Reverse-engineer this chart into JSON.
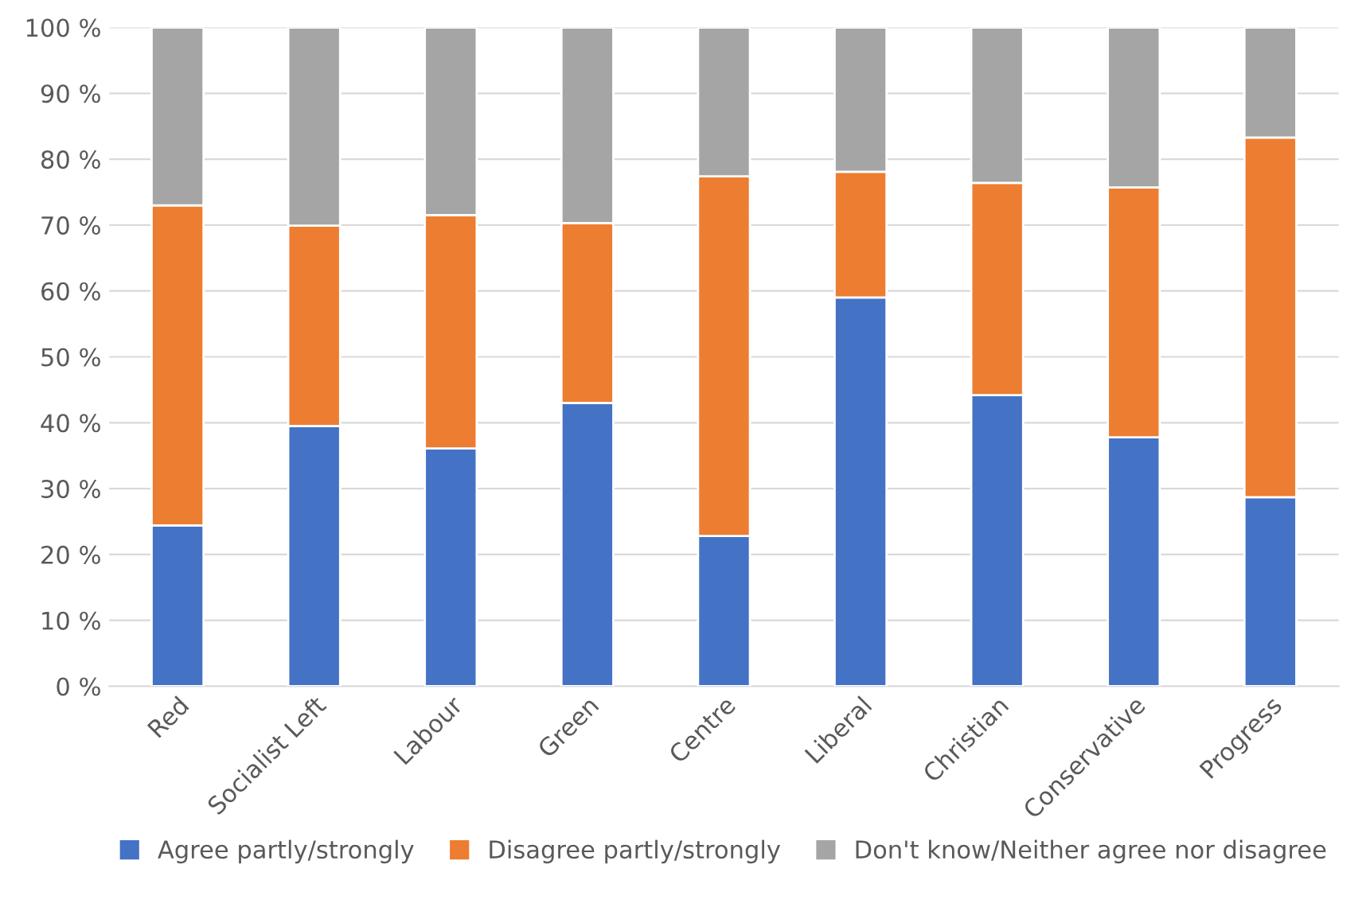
{
  "chart_data": {
    "type": "bar",
    "stacked": true,
    "categories": [
      "Red",
      "Socialist Left",
      "Labour",
      "Green",
      "Centre",
      "Liberal",
      "Christian",
      "Conservative",
      "Progress"
    ],
    "series": [
      {
        "name": "Agree partly/strongly",
        "color": "#4472c4",
        "values": [
          24.4,
          39.5,
          36.1,
          43.0,
          22.8,
          59.0,
          44.2,
          37.8,
          28.7
        ]
      },
      {
        "name": "Disagree partly/strongly",
        "color": "#ed7d31",
        "values": [
          48.6,
          30.4,
          35.4,
          27.3,
          54.6,
          19.1,
          32.2,
          37.9,
          54.6
        ]
      },
      {
        "name": "Don't know/Neither agree nor disagree",
        "color": "#a5a5a5",
        "values": [
          27.0,
          30.1,
          28.5,
          29.7,
          22.6,
          21.9,
          23.6,
          24.3,
          16.7
        ]
      }
    ],
    "ylim": [
      0,
      100
    ],
    "yticks": [
      {
        "value": 0,
        "label": "0 %"
      },
      {
        "value": 10,
        "label": "10 %"
      },
      {
        "value": 20,
        "label": "20 %"
      },
      {
        "value": 30,
        "label": "30 %"
      },
      {
        "value": 40,
        "label": "40 %"
      },
      {
        "value": 50,
        "label": "50 %"
      },
      {
        "value": 60,
        "label": "60 %"
      },
      {
        "value": 70,
        "label": "70 %"
      },
      {
        "value": 80,
        "label": "80 %"
      },
      {
        "value": 90,
        "label": "90 %"
      },
      {
        "value": 100,
        "label": "100 %"
      }
    ],
    "grid": "y",
    "legend": "bottom"
  }
}
